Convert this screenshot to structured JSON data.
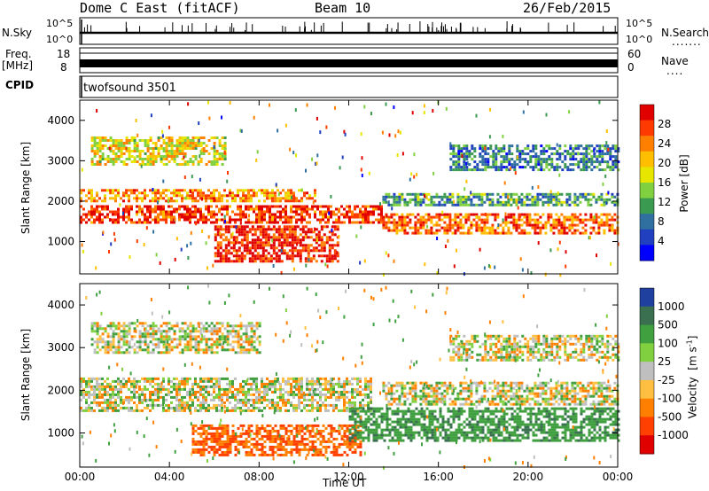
{
  "header": {
    "title": "Dome C East (fitACF)",
    "beam": "Beam 10",
    "date": "26/Feb/2015"
  },
  "strips": {
    "nsky_label": "N.Sky",
    "nsky_ticks": [
      "10^5",
      "10^0"
    ],
    "nsearch_label": "N.Search",
    "nsearch_ticks": [
      "10^5",
      "10^0"
    ],
    "freq_label": "Freq.",
    "freq_unit": "[MHz]",
    "freq_ticks": [
      "18",
      "8"
    ],
    "nave_label": "Nave",
    "nave_ticks": [
      "60",
      "0"
    ],
    "cpid_label": "CPID",
    "cpid_value": "twofsound 3501"
  },
  "chart_data": [
    {
      "type": "heatmap",
      "title": "",
      "ylabel": "Slant Range [km]",
      "xlabel": "",
      "ylim": [
        200,
        4500
      ],
      "y_ticks": [
        "4000",
        "3000",
        "2000",
        "1000"
      ],
      "x_ticks": [
        "00:00",
        "04:00",
        "08:00",
        "12:00",
        "16:00",
        "20:00",
        "00:00"
      ],
      "colorbar_label": "Power [dB]",
      "colorbar_ticks": [
        "28",
        "24",
        "20",
        "16",
        "12",
        "8",
        "4"
      ],
      "colorbar_colors": [
        "#e00000",
        "#ff3a00",
        "#ff7f00",
        "#ffbf00",
        "#e6e600",
        "#80d040",
        "#3a9a50",
        "#3070a0",
        "#2040c0",
        "#0000ff"
      ],
      "bands": [
        {
          "from_ut": 0.0,
          "to_ut": 13.5,
          "range_km": [
            1500,
            1900
          ],
          "value_db": 26
        },
        {
          "from_ut": 0.0,
          "to_ut": 10.5,
          "range_km": [
            2000,
            2300
          ],
          "value_db": 22
        },
        {
          "from_ut": 6.0,
          "to_ut": 11.5,
          "range_km": [
            500,
            1400
          ],
          "value_db": 27
        },
        {
          "from_ut": 13.5,
          "to_ut": 24.0,
          "range_km": [
            1200,
            1700
          ],
          "value_db": 24
        },
        {
          "from_ut": 13.5,
          "to_ut": 24.0,
          "range_km": [
            1900,
            2200
          ],
          "value_db": 12
        },
        {
          "from_ut": 0.5,
          "to_ut": 6.5,
          "range_km": [
            2900,
            3600
          ],
          "value_db": 18
        },
        {
          "from_ut": 16.5,
          "to_ut": 24.0,
          "range_km": [
            2800,
            3400
          ],
          "value_db": 10
        }
      ]
    },
    {
      "type": "heatmap",
      "title": "",
      "ylabel": "Slant Range [km]",
      "xlabel": "Time UT",
      "ylim": [
        200,
        4500
      ],
      "y_ticks": [
        "4000",
        "3000",
        "2000",
        "1000"
      ],
      "x_ticks": [
        "00:00",
        "04:00",
        "08:00",
        "12:00",
        "16:00",
        "20:00",
        "00:00"
      ],
      "colorbar_label": "Velocity",
      "colorbar_unit": "[m s",
      "colorbar_unit_exp": "-1",
      "colorbar_unit_close": "]",
      "colorbar_ticks": [
        "1000",
        "500",
        "100",
        "25",
        "-25",
        "-100",
        "-500",
        "-1000"
      ],
      "colorbar_colors": [
        "#2040a0",
        "#3a7050",
        "#40a040",
        "#80d040",
        "#bfbfbf",
        "#ffbf40",
        "#ff8000",
        "#ff4000",
        "#e00000"
      ],
      "bands": [
        {
          "from_ut": 0.0,
          "to_ut": 13.0,
          "range_km": [
            1500,
            2300
          ],
          "value_ms": 0
        },
        {
          "from_ut": 5.0,
          "to_ut": 12.5,
          "range_km": [
            500,
            1200
          ],
          "value_ms": -300
        },
        {
          "from_ut": 12.0,
          "to_ut": 24.0,
          "range_km": [
            800,
            1600
          ],
          "value_ms": 250
        },
        {
          "from_ut": 13.5,
          "to_ut": 24.0,
          "range_km": [
            1700,
            2200
          ],
          "value_ms": 0
        },
        {
          "from_ut": 0.5,
          "to_ut": 8.0,
          "range_km": [
            2900,
            3600
          ],
          "value_ms": 0
        },
        {
          "from_ut": 16.5,
          "to_ut": 24.0,
          "range_km": [
            2700,
            3300
          ],
          "value_ms": 0
        }
      ]
    }
  ]
}
